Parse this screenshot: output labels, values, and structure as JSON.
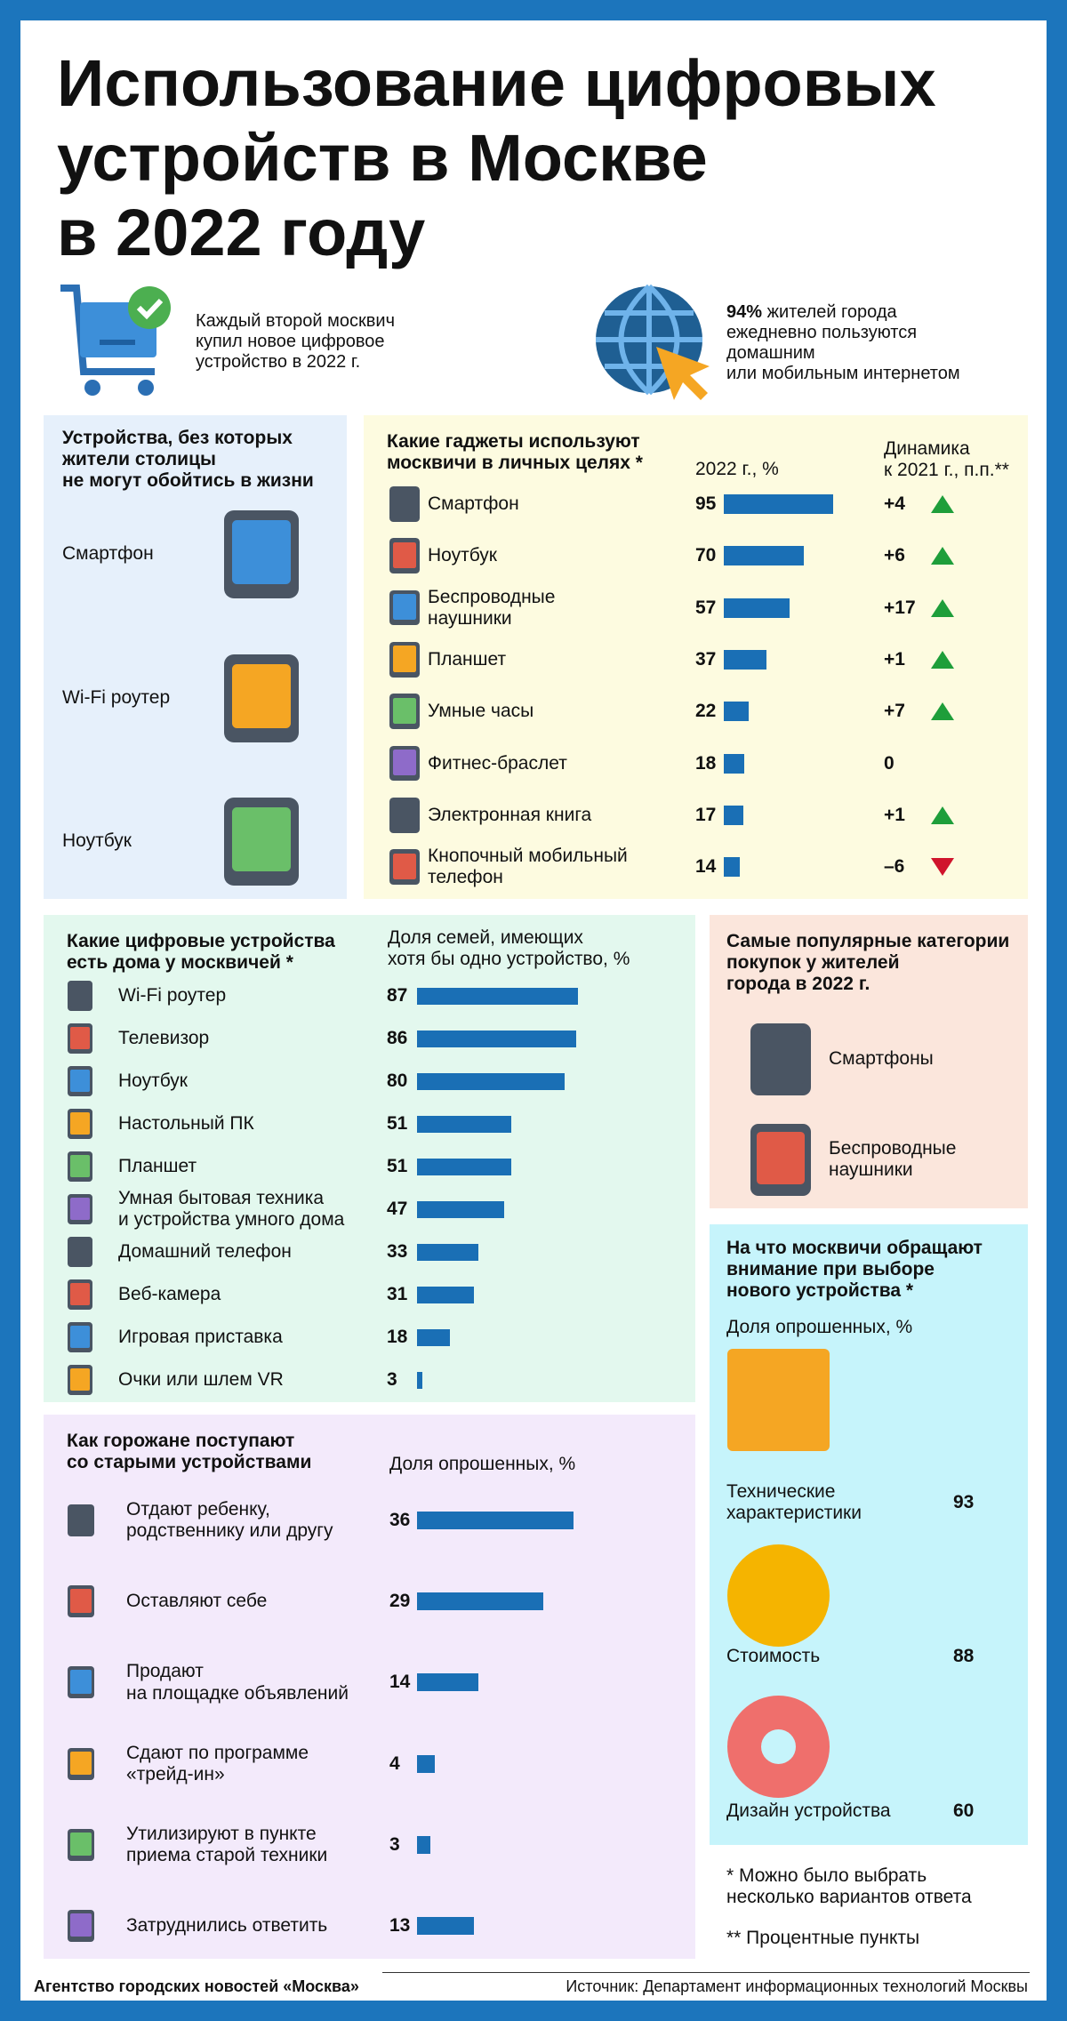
{
  "title": "Использование цифровых\nустройств в Москве\nв 2022 году",
  "facts": [
    {
      "text": "Каждый второй москвич\nкупил новое цифровое\nустройство в 2022 г."
    },
    {
      "highlight": "94%",
      "text": "жителей города\nежедневно пользуются\nдомашним\nили мобильным интернетом"
    }
  ],
  "essentials": {
    "title": "Устройства, без которых\nжители столицы\nне могут обойтись в жизни",
    "items": [
      "Смартфон",
      "Wi-Fi роутер",
      "Ноутбук"
    ]
  },
  "chart_data": [
    {
      "type": "bar",
      "title": "Какие гаджеты используют\nмосквичи в личных целях *",
      "value_header": "2022 г., %",
      "categories": [
        "Смартфон",
        "Ноутбук",
        "Беспроводные\nнаушники",
        "Планшет",
        "Умные часы",
        "Фитнес-браслет",
        "Электронная книга",
        "Кнопочный мобильный\nтелефон"
      ],
      "values": [
        95,
        70,
        57,
        37,
        22,
        18,
        17,
        14
      ],
      "color": "#1a6fb5",
      "change": {
        "title": "Динамика\nк 2021 г., п.п.**",
        "values": [
          4,
          6,
          17,
          1,
          7,
          0,
          1,
          -6
        ],
        "value_labels": [
          "+4",
          "+6",
          "+17",
          "+1",
          "+7",
          "0",
          "+1",
          "–6"
        ],
        "up_color": "#1e9e3a",
        "down_color": "#d0142c"
      }
    },
    {
      "type": "bar",
      "title": "Какие цифровые устройства\nесть дома у москвичей *",
      "value_header": "Доля семей, имеющих\nхотя бы одно устройство, %",
      "categories": [
        "Wi-Fi роутер",
        "Телевизор",
        "Ноутбук",
        "Настольный ПК",
        "Планшет",
        "Умная бытовая техника\nи устройства умного дома",
        "Домашний телефон",
        "Веб-камера",
        "Игровая приставка",
        "Очки или шлем VR"
      ],
      "values": [
        87,
        86,
        80,
        51,
        51,
        47,
        33,
        31,
        18,
        3
      ],
      "color": "#1a6fb5"
    },
    {
      "type": "bar",
      "title": "Как горожане поступают\nсо старыми устройствами",
      "value_header": "Доля опрошенных, %",
      "categories": [
        "Отдают ребенку,\nродственнику или другу",
        "Оставляют себе",
        "Продают\nна площадке объявлений",
        "Сдают по программе\n«трейд-ин»",
        "Утилизируют в пункте\nприема старой техники",
        "Затруднились ответить"
      ],
      "values": [
        36,
        29,
        14,
        4,
        3,
        13
      ],
      "color": "#1a6fb5"
    }
  ],
  "popular": {
    "title": "Самые популярные категории\nпокупок у жителей\nгорода в 2022 г.",
    "items": [
      "Смартфоны",
      "Беспроводные\nнаушники"
    ]
  },
  "attention": {
    "title": "На что москвичи обращают\nвнимание при выборе\nнового устройства *",
    "subtitle": "Доля опрошенных, %",
    "categories": [
      "Технические\nхарактеристики",
      "Стоимость",
      "Дизайн устройства"
    ],
    "values": [
      93,
      88,
      60
    ]
  },
  "notes": [
    "* Можно было выбрать\nнесколько вариантов ответа",
    "** Процентные пункты"
  ],
  "footer": {
    "agency": "Агентство городских новостей «Москва»",
    "source": "Источник: Департамент информационных технологий Москвы"
  }
}
